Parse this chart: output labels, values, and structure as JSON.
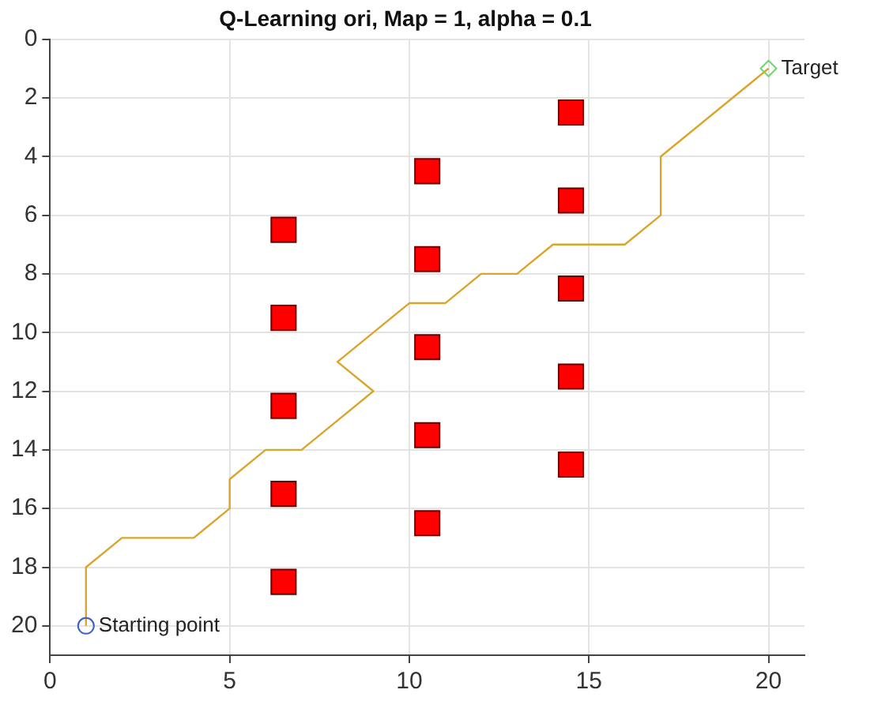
{
  "chart_data": {
    "type": "line",
    "title": "Q-Learning ori, Map = 1, alpha = 0.1",
    "xlim": [
      0,
      21
    ],
    "xticks": [
      0,
      5,
      10,
      15,
      20
    ],
    "ylim": [
      21,
      0
    ],
    "yticks": [
      0,
      2,
      4,
      6,
      8,
      10,
      12,
      14,
      16,
      18,
      20
    ],
    "grid": true,
    "legend": false,
    "series": [
      {
        "color": "#d9a62b",
        "marker": "none",
        "x": [
          1,
          1,
          2,
          4,
          5,
          5,
          6,
          7,
          9,
          8,
          10,
          11,
          12,
          13,
          14,
          16,
          17,
          17,
          20
        ],
        "values": [
          20,
          18,
          17,
          17,
          16,
          15,
          14,
          14,
          12,
          11,
          9,
          9,
          8,
          8,
          7,
          7,
          6,
          4,
          1
        ]
      },
      {
        "type": "scatter",
        "color": "#ff0000",
        "marker": "square",
        "x": [
          6.5,
          6.5,
          6.5,
          6.5,
          6.5,
          10.5,
          10.5,
          10.5,
          10.5,
          10.5,
          14.5,
          14.5,
          14.5,
          14.5,
          14.5
        ],
        "values": [
          6.5,
          9.5,
          12.5,
          15.5,
          18.5,
          4.5,
          7.5,
          10.5,
          13.5,
          16.5,
          2.5,
          5.5,
          8.5,
          11.5,
          14.5
        ]
      },
      {
        "type": "scatter",
        "color": "#3f5fbf",
        "marker": "circle",
        "x": [
          1
        ],
        "values": [
          20
        ]
      },
      {
        "type": "scatter",
        "color": "#66dd66",
        "marker": "diamond",
        "x": [
          20
        ],
        "values": [
          1
        ]
      }
    ],
    "annotations": [
      {
        "text": "Starting point",
        "x": 1,
        "y": 20
      },
      {
        "text": "Target",
        "x": 20,
        "y": 1
      }
    ]
  }
}
